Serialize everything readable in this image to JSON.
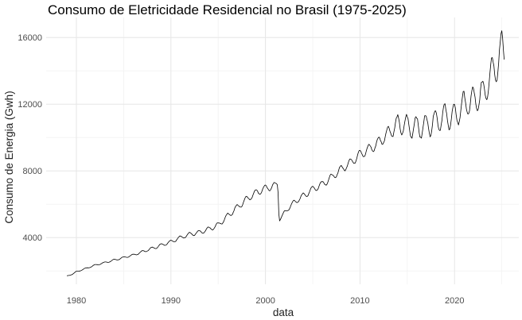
{
  "chart_data": {
    "type": "line",
    "title": "Consumo de Eletricidade Residencial no Brasil (1975-2025)",
    "xlabel": "data",
    "ylabel": "Consumo de Energia (Gwh)",
    "xlim": [
      1976.8,
      2026.8
    ],
    "ylim": [
      1200,
      17200
    ],
    "x_ticks": [
      1980,
      1990,
      2000,
      2010,
      2020
    ],
    "x_tick_labels": [
      "1980",
      "1990",
      "2000",
      "2010",
      "2020"
    ],
    "y_ticks": [
      4000,
      8000,
      12000,
      16000
    ],
    "y_tick_labels": [
      "4000",
      "8000",
      "12000",
      "16000"
    ],
    "grid": true,
    "legend": "none",
    "series": [
      {
        "color": "#000000",
        "x": [
          1979.0,
          1979.5,
          1980.0,
          1981.0,
          1982.0,
          1983.0,
          1984.0,
          1985.0,
          1986.0,
          1987.0,
          1988.0,
          1989.0,
          1990.0,
          1991.0,
          1992.0,
          1993.0,
          1994.0,
          1995.0,
          1996.0,
          1997.0,
          1998.0,
          1999.0,
          2000.0,
          2001.0,
          2001.3,
          2001.45,
          2002.0,
          2003.0,
          2004.0,
          2005.0,
          2006.0,
          2007.0,
          2008.0,
          2009.0,
          2010.0,
          2011.0,
          2012.0,
          2013.0,
          2014.0,
          2015.0,
          2016.0,
          2017.0,
          2018.0,
          2019.0,
          2020.0,
          2021.0,
          2022.0,
          2023.0,
          2024.0,
          2024.6,
          2025.0,
          2025.3
        ],
        "y": [
          1700,
          1780,
          1950,
          2150,
          2350,
          2500,
          2650,
          2800,
          2950,
          3150,
          3350,
          3550,
          3750,
          4000,
          4200,
          4300,
          4500,
          4750,
          5300,
          5800,
          6300,
          6700,
          6950,
          7100,
          7300,
          5000,
          5500,
          6100,
          6500,
          6900,
          7200,
          7600,
          8100,
          8500,
          9000,
          9300,
          9700,
          10300,
          10800,
          10700,
          10600,
          10700,
          11000,
          11300,
          11200,
          12000,
          12200,
          12600,
          14000,
          14500,
          15400,
          15000
        ],
        "seasonal_amplitude": [
          10,
          10,
          30,
          30,
          40,
          40,
          50,
          50,
          60,
          70,
          80,
          90,
          100,
          100,
          120,
          120,
          140,
          150,
          160,
          180,
          200,
          200,
          200,
          200,
          200,
          50,
          100,
          150,
          180,
          200,
          200,
          220,
          240,
          260,
          280,
          300,
          330,
          380,
          550,
          650,
          700,
          700,
          700,
          700,
          750,
          750,
          800,
          850,
          900,
          950,
          1000,
          1000
        ]
      }
    ]
  }
}
